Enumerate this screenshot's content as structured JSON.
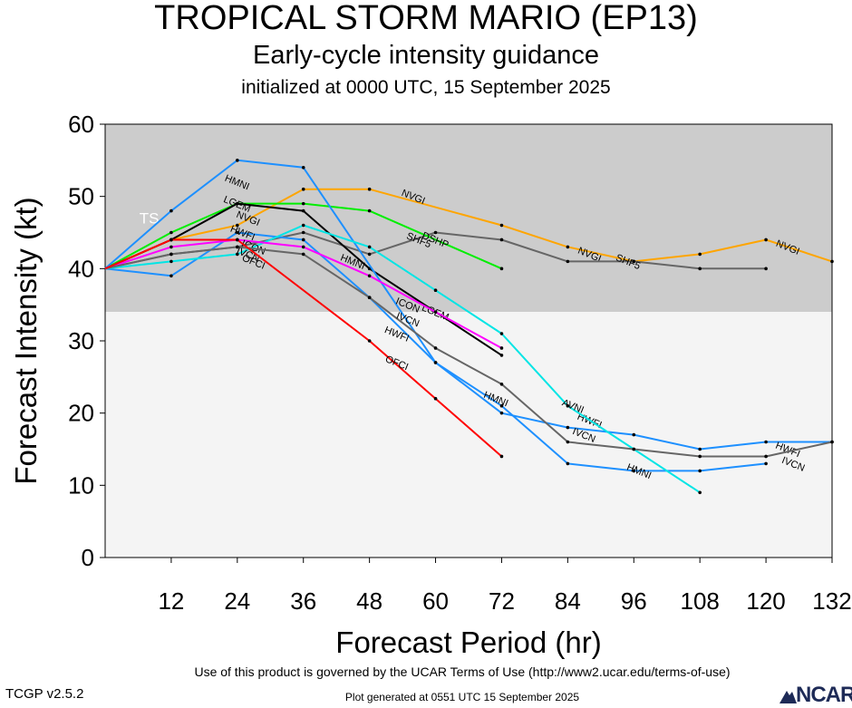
{
  "title": "TROPICAL STORM MARIO (EP13)",
  "subtitle": "Early-cycle intensity guidance",
  "init_line": "initialized at 0000 UTC, 15 September 2025",
  "footer": {
    "terms": "Use of this product is governed by the UCAR Terms of Use (http://www2.ucar.edu/terms-of-use)",
    "version": "TCGP v2.5.2",
    "generated": "Plot generated at 0551 UTC   15 September 2025",
    "logo_text": "NCAR"
  },
  "chart_data": {
    "type": "line",
    "xlabel": "Forecast Period (hr)",
    "ylabel": "Forecast Intensity (kt)",
    "xlim": [
      0,
      132
    ],
    "ylim": [
      0,
      60
    ],
    "xticks": [
      12,
      24,
      36,
      48,
      60,
      72,
      84,
      96,
      108,
      120,
      132
    ],
    "yticks": [
      0,
      10,
      20,
      30,
      40,
      50,
      60
    ],
    "bands": [
      {
        "label": "TS",
        "from": 34,
        "to": 60,
        "color": "#cccccc"
      },
      {
        "label": "",
        "from": 0,
        "to": 34,
        "color": "#f4f4f4"
      }
    ],
    "band_label": {
      "text": "TS",
      "x": 8,
      "y": 47
    },
    "series": [
      {
        "name": "NVGI",
        "color": "#ffa500",
        "x": [
          0,
          12,
          24,
          36,
          48,
          72,
          84,
          96,
          108,
          120,
          132
        ],
        "y": [
          40,
          44,
          46,
          51,
          51,
          46,
          43,
          41,
          42,
          44,
          41
        ],
        "labels": [
          [
            26,
            47
          ],
          [
            56,
            50
          ],
          [
            88,
            42
          ],
          [
            124,
            43
          ]
        ]
      },
      {
        "name": "SHF5",
        "color": "#666666",
        "x": [
          0,
          12,
          24,
          36,
          48,
          60,
          72,
          84,
          96,
          108,
          120
        ],
        "y": [
          40,
          42,
          43,
          45,
          42,
          45,
          44,
          41,
          41,
          40,
          40
        ],
        "labels": [
          [
            57,
            44
          ],
          [
            95,
            41
          ]
        ]
      },
      {
        "name": "DSHP",
        "color": "#00ee00",
        "x": [
          0,
          12,
          24,
          36,
          48,
          72
        ],
        "y": [
          40,
          45,
          49,
          49,
          48,
          40
        ],
        "labels": [
          [
            60,
            44
          ]
        ]
      },
      {
        "name": "LGEM",
        "color": "#000000",
        "x": [
          0,
          12,
          24,
          36,
          48,
          72
        ],
        "y": [
          40,
          44,
          49,
          48,
          40,
          28
        ],
        "labels": [
          [
            24,
            49
          ],
          [
            60,
            34
          ]
        ]
      },
      {
        "name": "HMNI",
        "color": "#1e90ff",
        "x": [
          0,
          12,
          24,
          36,
          60,
          72,
          84,
          96,
          108,
          120
        ],
        "y": [
          40,
          48,
          55,
          54,
          27,
          21,
          13,
          12,
          12,
          13
        ],
        "labels": [
          [
            24,
            52
          ],
          [
            45,
            41
          ],
          [
            71,
            22
          ],
          [
            97,
            12
          ]
        ]
      },
      {
        "name": "HWFI",
        "color": "#1e90ff",
        "x": [
          0,
          12,
          24,
          36,
          48,
          60,
          72,
          84,
          96,
          108,
          120,
          132
        ],
        "y": [
          40,
          39,
          45,
          44,
          36,
          27,
          20,
          18,
          17,
          15,
          16,
          16
        ],
        "labels": [
          [
            25,
            45
          ],
          [
            53,
            31
          ],
          [
            88,
            19
          ],
          [
            124,
            15
          ]
        ]
      },
      {
        "name": "AVNI",
        "color": "#00e5e5",
        "x": [
          0,
          12,
          24,
          36,
          48,
          60,
          72,
          84,
          96,
          108
        ],
        "y": [
          40,
          41,
          42,
          46,
          43,
          37,
          31,
          21,
          15,
          9
        ],
        "labels": [
          [
            85,
            21
          ]
        ]
      },
      {
        "name": "ICON",
        "color": "#ff00ff",
        "x": [
          0,
          12,
          24,
          36,
          48,
          60,
          72
        ],
        "y": [
          40,
          43,
          44,
          43,
          39,
          34,
          29
        ],
        "labels": [
          [
            27,
            43
          ],
          [
            55,
            35
          ]
        ]
      },
      {
        "name": "IVCN",
        "color": "#666666",
        "x": [
          0,
          12,
          24,
          36,
          48,
          60,
          72,
          84,
          96,
          108,
          120,
          132
        ],
        "y": [
          40,
          42,
          43,
          42,
          36,
          29,
          24,
          16,
          15,
          14,
          14,
          16
        ],
        "labels": [
          [
            26,
            42
          ],
          [
            55,
            33
          ],
          [
            87,
            17
          ],
          [
            125,
            13
          ]
        ]
      },
      {
        "name": "OFCI",
        "color": "#ff0000",
        "x": [
          0,
          12,
          24,
          48,
          60,
          72
        ],
        "y": [
          40,
          44,
          44,
          30,
          22,
          14
        ],
        "labels": [
          [
            27,
            41
          ],
          [
            53,
            27
          ]
        ]
      }
    ]
  }
}
